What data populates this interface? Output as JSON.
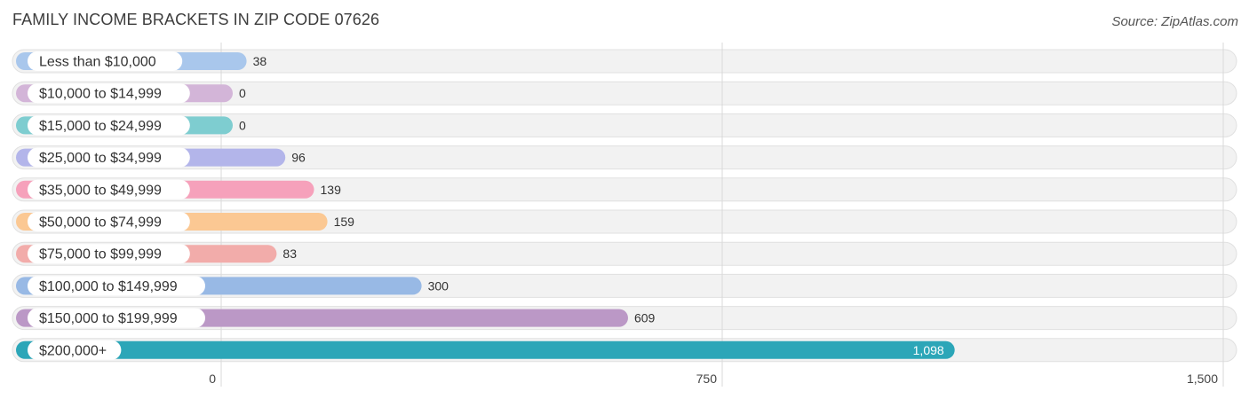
{
  "title": "FAMILY INCOME BRACKETS IN ZIP CODE 07626",
  "source": "Source: ZipAtlas.com",
  "chart_data": {
    "type": "bar",
    "orientation": "horizontal",
    "title": "FAMILY INCOME BRACKETS IN ZIP CODE 07626",
    "categories": [
      "Less than $10,000",
      "$10,000 to $14,999",
      "$15,000 to $24,999",
      "$25,000 to $34,999",
      "$35,000 to $49,999",
      "$50,000 to $74,999",
      "$75,000 to $99,999",
      "$100,000 to $149,999",
      "$150,000 to $199,999",
      "$200,000+"
    ],
    "values": [
      38,
      0,
      0,
      96,
      139,
      159,
      83,
      300,
      609,
      1098
    ],
    "value_labels": [
      "38",
      "0",
      "0",
      "96",
      "139",
      "159",
      "83",
      "300",
      "609",
      "1,098"
    ],
    "colors": [
      "#a9c7ec",
      "#d3b5d8",
      "#7ecdd0",
      "#b3b5ea",
      "#f6a1bb",
      "#fbc893",
      "#f2acaa",
      "#98b9e5",
      "#bb98c6",
      "#2ca6b8"
    ],
    "xlim": [
      0,
      1500
    ],
    "xticks": [
      0,
      750,
      1500
    ],
    "xtick_labels": [
      "0",
      "750",
      "1,500"
    ],
    "grid": true,
    "xlabel": "",
    "ylabel": ""
  }
}
